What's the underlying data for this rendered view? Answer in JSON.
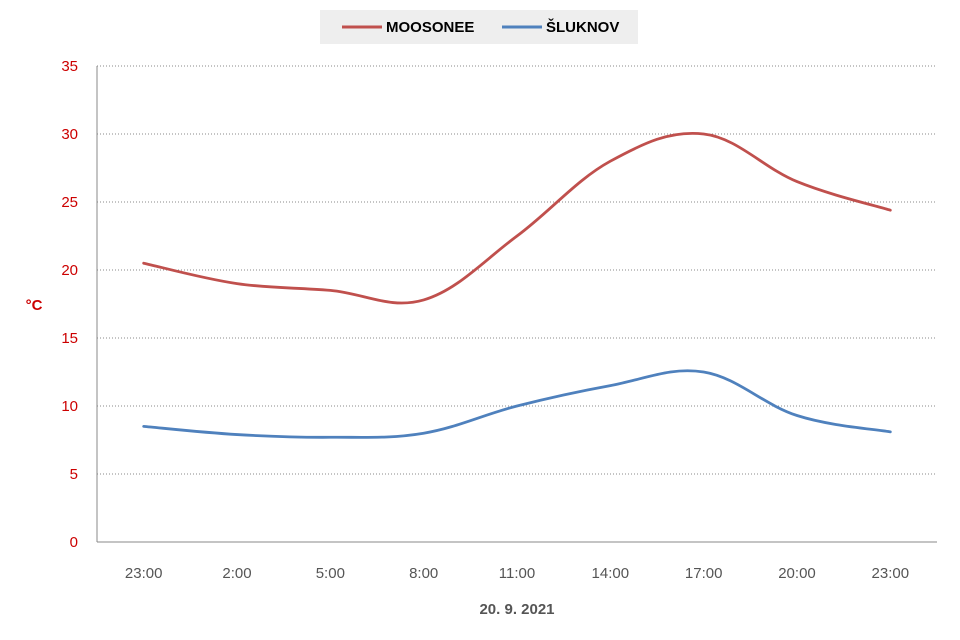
{
  "chart_data": {
    "type": "line",
    "categories": [
      "23:00",
      "2:00",
      "5:00",
      "8:00",
      "11:00",
      "14:00",
      "17:00",
      "20:00",
      "23:00"
    ],
    "series": [
      {
        "name": "MOOSONEE",
        "color": "#c0504d",
        "values": [
          20.5,
          19.0,
          18.5,
          17.8,
          22.5,
          28.0,
          30.0,
          26.5,
          24.4
        ]
      },
      {
        "name": "ŠLUKNOV",
        "color": "#4f81bd",
        "values": [
          8.5,
          7.9,
          7.7,
          8.0,
          10.0,
          11.5,
          12.5,
          9.3,
          8.1
        ]
      }
    ],
    "ylabel": "°C",
    "xlabel": "20. 9. 2021",
    "ylim": [
      0,
      35
    ],
    "yticks": [
      "0",
      "5",
      "10",
      "15",
      "20",
      "25",
      "30",
      "35"
    ],
    "grid": true,
    "legend_position": "top"
  }
}
